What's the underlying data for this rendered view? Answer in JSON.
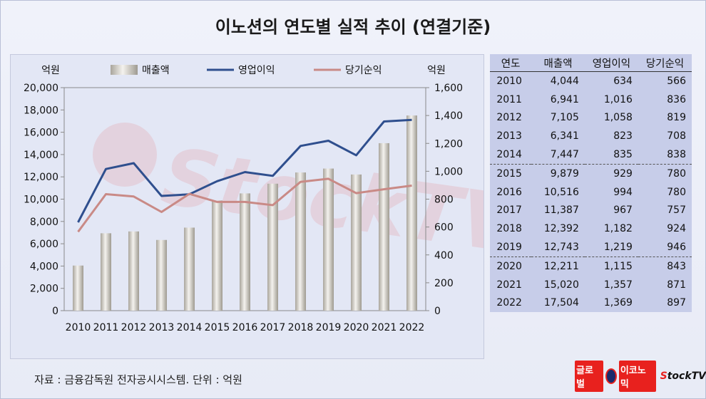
{
  "title": "이노션의 연도별 실적 추이 (연결기준)",
  "source": "자료 : 금융감독원 전자공시시스템. 단위 : 억원",
  "logos": {
    "global": "글로벌",
    "economy": "이코노믹",
    "stocktv_s": "S",
    "stocktv_rest": "tockTV"
  },
  "chart_data": {
    "type": "bar+line",
    "categories": [
      "2010",
      "2011",
      "2012",
      "2013",
      "2014",
      "2015",
      "2016",
      "2017",
      "2018",
      "2019",
      "2020",
      "2021",
      "2022"
    ],
    "series": [
      {
        "name": "매출액",
        "type": "bar",
        "axis": "left",
        "values": [
          4044,
          6941,
          7105,
          6341,
          7447,
          9879,
          10516,
          11387,
          12392,
          12743,
          12211,
          15020,
          17504
        ]
      },
      {
        "name": "영업이익",
        "type": "line",
        "axis": "right",
        "values": [
          634,
          1016,
          1058,
          823,
          835,
          929,
          994,
          967,
          1182,
          1219,
          1115,
          1357,
          1369
        ]
      },
      {
        "name": "당기순익",
        "type": "line",
        "axis": "right",
        "values": [
          566,
          836,
          819,
          708,
          838,
          780,
          780,
          757,
          924,
          946,
          843,
          871,
          897
        ]
      }
    ],
    "left_axis": {
      "label": "억원",
      "min": 0,
      "max": 20000,
      "step": 2000,
      "ticks": [
        "0",
        "2,000",
        "4,000",
        "6,000",
        "8,000",
        "10,000",
        "12,000",
        "14,000",
        "16,000",
        "18,000",
        "20,000"
      ]
    },
    "right_axis": {
      "label": "억원",
      "min": 0,
      "max": 1600,
      "step": 200,
      "ticks": [
        "0",
        "200",
        "400",
        "600",
        "800",
        "1,000",
        "1,200",
        "1,400",
        "1,600"
      ]
    },
    "colors": {
      "bar": "#c9c5bc",
      "operating": "#2f4f8e",
      "net": "#c98a86"
    },
    "legend_position": "top",
    "grid": false
  },
  "table": {
    "headers": [
      "연도",
      "매출액",
      "영업이익",
      "당기순익"
    ],
    "rows": [
      [
        "2010",
        "4,044",
        "634",
        "566"
      ],
      [
        "2011",
        "6,941",
        "1,016",
        "836"
      ],
      [
        "2012",
        "7,105",
        "1,058",
        "819"
      ],
      [
        "2013",
        "6,341",
        "823",
        "708"
      ],
      [
        "2014",
        "7,447",
        "835",
        "838"
      ],
      [
        "2015",
        "9,879",
        "929",
        "780"
      ],
      [
        "2016",
        "10,516",
        "994",
        "780"
      ],
      [
        "2017",
        "11,387",
        "967",
        "757"
      ],
      [
        "2018",
        "12,392",
        "1,182",
        "924"
      ],
      [
        "2019",
        "12,743",
        "1,219",
        "946"
      ],
      [
        "2020",
        "12,211",
        "1,115",
        "843"
      ],
      [
        "2021",
        "15,020",
        "1,357",
        "871"
      ],
      [
        "2022",
        "17,504",
        "1,369",
        "897"
      ]
    ],
    "separator_before_rows": [
      5,
      10
    ]
  }
}
